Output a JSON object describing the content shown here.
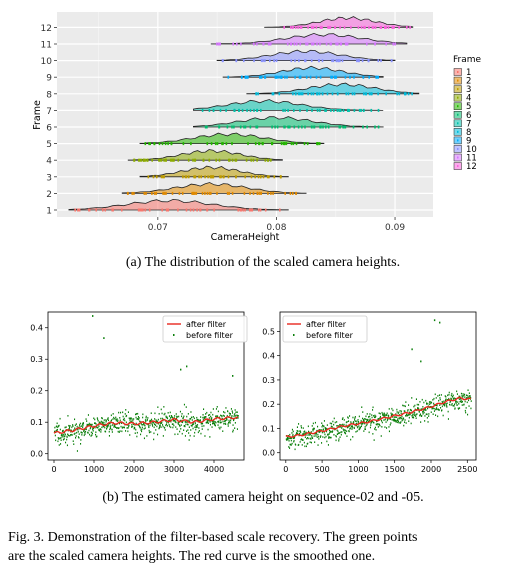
{
  "captions": {
    "a": "(a) The distribution of the scaled camera heights.",
    "b": "(b) The estimated camera height on sequence-02 and -05.",
    "figure_line1": "Fig. 3.   Demonstration of the filter-based scale recovery. The green points",
    "figure_line2": "are the scaled camera heights. The red curve is the smoothed one."
  },
  "chart_data": [
    {
      "type": "ridgeline",
      "xlabel": "CameraHeight",
      "ylabel": "Frame",
      "xlim": [
        0.0615,
        0.0932
      ],
      "xticks": [
        0.07,
        0.08,
        0.09
      ],
      "xtick_labels": [
        "0.07",
        "0.08",
        "0.09"
      ],
      "background": "#ebebeb",
      "grid": true,
      "legend": {
        "title": "Frame",
        "position": "right"
      },
      "series": [
        {
          "name": "1",
          "color": "#f8766d",
          "range": [
            0.0625,
            0.081
          ],
          "peak": 0.071
        },
        {
          "name": "2",
          "color": "#e18a00",
          "range": [
            0.067,
            0.0825
          ],
          "peak": 0.0745
        },
        {
          "name": "3",
          "color": "#be9c00",
          "range": [
            0.0685,
            0.081
          ],
          "peak": 0.0745
        },
        {
          "name": "4",
          "color": "#8cab00",
          "range": [
            0.0675,
            0.0805
          ],
          "peak": 0.0745
        },
        {
          "name": "5",
          "color": "#24b700",
          "range": [
            0.0685,
            0.084
          ],
          "peak": 0.076
        },
        {
          "name": "6",
          "color": "#00be70",
          "range": [
            0.073,
            0.089
          ],
          "peak": 0.08
        },
        {
          "name": "7",
          "color": "#00c1ab",
          "range": [
            0.073,
            0.089
          ],
          "peak": 0.079
        },
        {
          "name": "8",
          "color": "#00bbda",
          "range": [
            0.0775,
            0.092
          ],
          "peak": 0.0855
        },
        {
          "name": "9",
          "color": "#00acfc",
          "range": [
            0.0755,
            0.089
          ],
          "peak": 0.083
        },
        {
          "name": "10",
          "color": "#8b93ff",
          "range": [
            0.075,
            0.09
          ],
          "peak": 0.0825
        },
        {
          "name": "11",
          "color": "#d575fe",
          "range": [
            0.0745,
            0.091
          ],
          "peak": 0.084
        },
        {
          "name": "12",
          "color": "#f962dd",
          "range": [
            0.079,
            0.0915
          ],
          "peak": 0.086
        }
      ]
    },
    {
      "type": "scatter+line",
      "title": "",
      "xlabel": "",
      "ylabel": "",
      "xlim": [
        -150,
        4750
      ],
      "ylim": [
        -0.02,
        0.45
      ],
      "xticks": [
        0,
        1000,
        2000,
        3000,
        4000
      ],
      "yticks": [
        0.0,
        0.1,
        0.2,
        0.3,
        0.4
      ],
      "legend": {
        "position": "top-right",
        "entries": [
          "after filter",
          "before filter"
        ]
      },
      "series": [
        {
          "name": "after filter",
          "color": "#e8281e",
          "x": [
            0,
            500,
            1000,
            1500,
            2000,
            2500,
            3000,
            3500,
            4000,
            4500,
            4600
          ],
          "y": [
            0.065,
            0.075,
            0.088,
            0.098,
            0.095,
            0.1,
            0.108,
            0.1,
            0.11,
            0.115,
            0.113
          ]
        },
        {
          "name": "before filter",
          "color": "#0a7f0a",
          "n_points": 4600,
          "spread": 0.025,
          "outliers": [
            [
              950,
              0.44
            ],
            [
              1230,
              0.37
            ],
            [
              3300,
              0.28
            ],
            [
              4450,
              0.25
            ],
            [
              3150,
              0.27
            ]
          ]
        }
      ]
    },
    {
      "type": "scatter+line",
      "title": "",
      "xlabel": "",
      "ylabel": "",
      "xlim": [
        -80,
        2620
      ],
      "ylim": [
        -0.03,
        0.58
      ],
      "xticks": [
        0,
        500,
        1000,
        1500,
        2000,
        2500
      ],
      "yticks": [
        0.0,
        0.1,
        0.2,
        0.3,
        0.4,
        0.5
      ],
      "legend": {
        "position": "top-left",
        "entries": [
          "after filter",
          "before filter"
        ]
      },
      "series": [
        {
          "name": "after filter",
          "color": "#e8281e",
          "x": [
            0,
            200,
            500,
            800,
            1100,
            1400,
            1700,
            2000,
            2200,
            2400,
            2550
          ],
          "y": [
            0.065,
            0.072,
            0.09,
            0.11,
            0.125,
            0.145,
            0.165,
            0.19,
            0.21,
            0.225,
            0.22
          ]
        },
        {
          "name": "before filter",
          "color": "#0a7f0a",
          "n_points": 2600,
          "spread": 0.03,
          "outliers": [
            [
              2040,
              0.55
            ],
            [
              2110,
              0.54
            ],
            [
              1730,
              0.43
            ],
            [
              1850,
              0.38
            ]
          ]
        }
      ]
    }
  ]
}
